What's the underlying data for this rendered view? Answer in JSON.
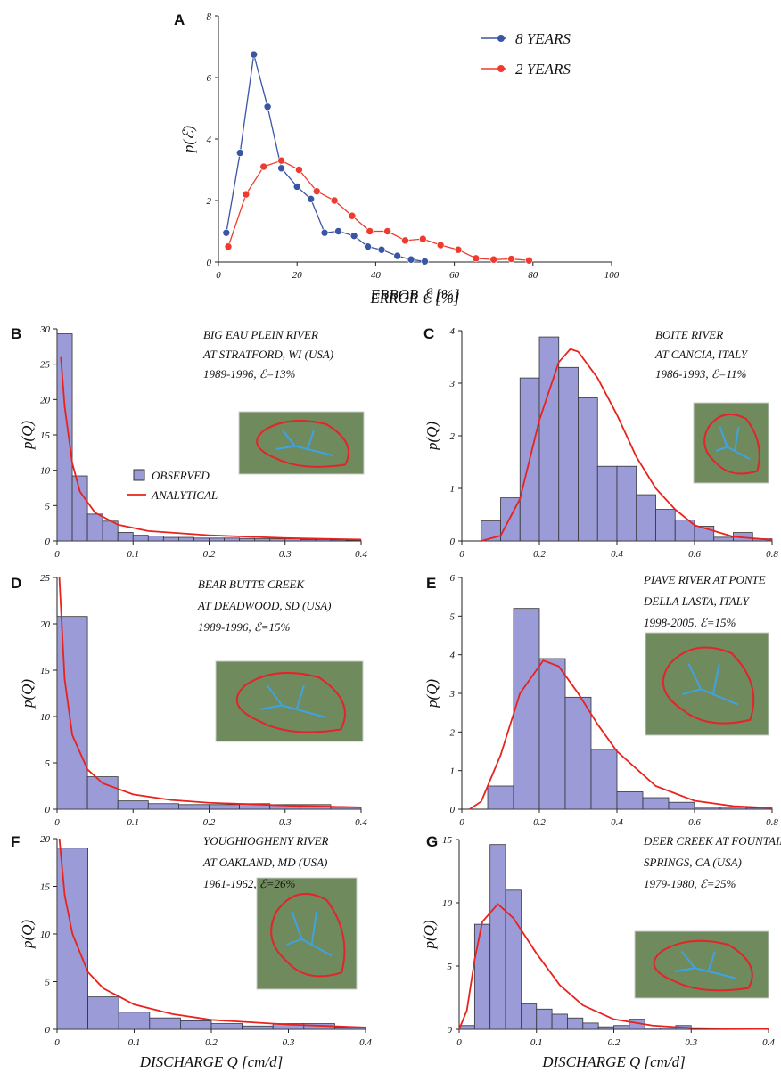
{
  "chart_data": [
    {
      "type": "line",
      "label": "A",
      "xlabel": "ERROR ℰ [%]",
      "ylabel": "p(ℰ)",
      "xlim": [
        0,
        100
      ],
      "xticks": [
        0,
        20,
        40,
        60,
        80,
        100
      ],
      "ylim": [
        0,
        8
      ],
      "yticks": [
        0,
        2,
        4,
        6,
        8
      ],
      "series": [
        {
          "name": "8 YEARS",
          "color": "#3a55a4",
          "x": [
            2,
            5.5,
            9,
            12.5,
            16,
            20,
            23.5,
            27,
            30.5,
            34.5,
            38,
            41.5,
            45.5,
            49,
            52.5
          ],
          "values": [
            0.95,
            3.55,
            6.75,
            5.05,
            3.05,
            2.45,
            2.05,
            0.95,
            1.0,
            0.85,
            0.5,
            0.4,
            0.2,
            0.08,
            0.02
          ]
        },
        {
          "name": "2 YEARS",
          "color": "#ee3b2e",
          "x": [
            2.5,
            7,
            11.5,
            16,
            20.5,
            25,
            29.5,
            34,
            38.5,
            43,
            47.5,
            52,
            56.5,
            61,
            65.5,
            70,
            74.5,
            79
          ],
          "values": [
            0.5,
            2.2,
            3.1,
            3.3,
            3.0,
            2.3,
            2.0,
            1.5,
            1.0,
            1.0,
            0.7,
            0.75,
            0.55,
            0.4,
            0.12,
            0.08,
            0.1,
            0.05
          ]
        }
      ]
    },
    {
      "type": "histogram",
      "label": "B",
      "ylabel": "p(Q)",
      "annotation": [
        "BIG EAU PLEIN RIVER",
        "AT STRATFORD, WI (USA)",
        "1989-1996, ℰ=13%"
      ],
      "xlim": [
        0,
        0.4
      ],
      "xticks": [
        0,
        0.1,
        0.2,
        0.3,
        0.4
      ],
      "ylim": [
        0,
        30
      ],
      "yticks": [
        0,
        5,
        10,
        15,
        20,
        25,
        30
      ],
      "name": "OBSERVED",
      "color": "#9b9bd8",
      "bins": [
        0,
        0.02,
        0.04,
        0.06,
        0.08,
        0.1,
        0.12,
        0.14,
        0.16,
        0.18,
        0.2,
        0.22,
        0.24,
        0.26,
        0.28,
        0.3,
        0.32,
        0.34,
        0.36,
        0.38,
        0.4
      ],
      "values": [
        29.3,
        9.2,
        3.8,
        2.8,
        1.2,
        0.8,
        0.7,
        0.5,
        0.5,
        0.4,
        0.4,
        0.4,
        0.35,
        0.3,
        0.3,
        0.3,
        0.2,
        0.2,
        0.15,
        0.1
      ],
      "curve": {
        "name": "ANALYTICAL",
        "color": "#e8221c",
        "x": [
          0.005,
          0.01,
          0.02,
          0.03,
          0.05,
          0.08,
          0.12,
          0.2,
          0.3,
          0.4
        ],
        "values": [
          26,
          19,
          11,
          7,
          4,
          2.3,
          1.4,
          0.8,
          0.4,
          0.2
        ]
      }
    },
    {
      "type": "histogram",
      "label": "C",
      "ylabel": "p(Q)",
      "annotation": [
        "BOITE RIVER",
        "AT CANCIA, ITALY",
        "1986-1993, ℰ=11%"
      ],
      "xlim": [
        0,
        0.8
      ],
      "xticks": [
        0,
        0.2,
        0.4,
        0.6,
        0.8
      ],
      "ylim": [
        0,
        4
      ],
      "yticks": [
        0,
        1,
        2,
        3,
        4
      ],
      "color": "#9b9bd8",
      "bins": [
        0.05,
        0.1,
        0.15,
        0.2,
        0.25,
        0.3,
        0.35,
        0.4,
        0.45,
        0.5,
        0.55,
        0.6,
        0.65,
        0.7,
        0.75,
        0.8
      ],
      "values": [
        0.38,
        0.82,
        3.1,
        3.88,
        3.3,
        2.72,
        1.42,
        1.42,
        0.88,
        0.6,
        0.4,
        0.28,
        0.07,
        0.16,
        0.04
      ],
      "curve": {
        "color": "#e8221c",
        "x": [
          0.05,
          0.1,
          0.15,
          0.2,
          0.25,
          0.28,
          0.3,
          0.35,
          0.4,
          0.45,
          0.5,
          0.55,
          0.6,
          0.7,
          0.8
        ],
        "values": [
          0,
          0.1,
          0.8,
          2.3,
          3.4,
          3.65,
          3.6,
          3.1,
          2.4,
          1.6,
          1.0,
          0.6,
          0.3,
          0.08,
          0.02
        ]
      }
    },
    {
      "type": "histogram",
      "label": "D",
      "ylabel": "p(Q)",
      "annotation": [
        "BEAR BUTTE CREEK",
        "AT DEADWOOD, SD (USA)",
        "1989-1996, ℰ=15%"
      ],
      "xlim": [
        0,
        0.4
      ],
      "xticks": [
        0,
        0.1,
        0.2,
        0.3,
        0.4
      ],
      "ylim": [
        0,
        25
      ],
      "yticks": [
        0,
        5,
        10,
        15,
        20,
        25
      ],
      "color": "#9b9bd8",
      "bins": [
        0,
        0.04,
        0.08,
        0.12,
        0.16,
        0.2,
        0.24,
        0.28,
        0.32,
        0.36,
        0.4
      ],
      "values": [
        20.8,
        3.5,
        0.9,
        0.6,
        0.5,
        0.5,
        0.6,
        0.5,
        0.5,
        0.2
      ],
      "curve": {
        "color": "#e8221c",
        "x": [
          0.003,
          0.01,
          0.02,
          0.04,
          0.06,
          0.1,
          0.15,
          0.2,
          0.3,
          0.4
        ],
        "values": [
          25,
          14,
          8,
          4.3,
          2.8,
          1.6,
          1.0,
          0.7,
          0.4,
          0.2
        ]
      }
    },
    {
      "type": "histogram",
      "label": "E",
      "ylabel": "p(Q)",
      "annotation": [
        "PIAVE RIVER AT PONTE",
        "DELLA LASTA, ITALY",
        "1998-2005, ℰ=15%"
      ],
      "xlim": [
        0,
        0.8
      ],
      "xticks": [
        0,
        0.2,
        0.4,
        0.6,
        0.8
      ],
      "ylim": [
        0,
        6
      ],
      "yticks": [
        0,
        1,
        2,
        3,
        4,
        5,
        6
      ],
      "color": "#9b9bd8",
      "bins": [
        0.0667,
        0.1333,
        0.2,
        0.2667,
        0.3333,
        0.4,
        0.4667,
        0.5333,
        0.6,
        0.6667,
        0.7333,
        0.8
      ],
      "values": [
        0.6,
        5.2,
        3.9,
        2.9,
        1.55,
        0.45,
        0.3,
        0.18,
        0.05,
        0.05,
        0.03
      ],
      "curve": {
        "color": "#e8221c",
        "x": [
          0.02,
          0.05,
          0.1,
          0.15,
          0.21,
          0.25,
          0.3,
          0.35,
          0.4,
          0.5,
          0.6,
          0.7,
          0.8
        ],
        "values": [
          0,
          0.2,
          1.4,
          3.0,
          3.85,
          3.7,
          3.0,
          2.2,
          1.5,
          0.6,
          0.22,
          0.08,
          0.03
        ]
      }
    },
    {
      "type": "histogram",
      "label": "F",
      "ylabel": "p(Q)",
      "xlabel": "DISCHARGE Q [cm/d]",
      "annotation": [
        "YOUGHIOGHENY RIVER",
        "AT OAKLAND, MD (USA)",
        "1961-1962, ℰ=26%"
      ],
      "xlim": [
        0,
        0.4
      ],
      "xticks": [
        0,
        0.1,
        0.2,
        0.3,
        0.4
      ],
      "ylim": [
        0,
        20
      ],
      "yticks": [
        0,
        5,
        10,
        15,
        20
      ],
      "color": "#9b9bd8",
      "bins": [
        0,
        0.04,
        0.08,
        0.12,
        0.16,
        0.2,
        0.24,
        0.28,
        0.32,
        0.36,
        0.4
      ],
      "values": [
        19,
        3.4,
        1.8,
        1.2,
        0.9,
        0.6,
        0.35,
        0.6,
        0.6,
        0.2
      ],
      "curve": {
        "color": "#e8221c",
        "x": [
          0.003,
          0.01,
          0.02,
          0.04,
          0.06,
          0.1,
          0.15,
          0.2,
          0.3,
          0.4
        ],
        "values": [
          20,
          14,
          10,
          6,
          4.3,
          2.6,
          1.6,
          1.0,
          0.5,
          0.2
        ]
      }
    },
    {
      "type": "histogram",
      "label": "G",
      "ylabel": "p(Q)",
      "xlabel": "DISCHARGE Q [cm/d]",
      "annotation": [
        "DEER CREEK AT FOUNTAIN",
        "SPRINGS, CA (USA)",
        "1979-1980, ℰ=25%"
      ],
      "xlim": [
        0,
        0.4
      ],
      "xticks": [
        0,
        0.1,
        0.2,
        0.3,
        0.4
      ],
      "ylim": [
        0,
        15
      ],
      "yticks": [
        0,
        5,
        10,
        15
      ],
      "color": "#9b9bd8",
      "bins": [
        0,
        0.02,
        0.04,
        0.06,
        0.08,
        0.1,
        0.12,
        0.14,
        0.16,
        0.18,
        0.2,
        0.22,
        0.24,
        0.26,
        0.28,
        0.3
      ],
      "values": [
        0.3,
        8.3,
        14.6,
        11.0,
        2.0,
        1.6,
        1.2,
        0.9,
        0.5,
        0.2,
        0.3,
        0.8,
        0.1,
        0.1,
        0.3
      ],
      "curve": {
        "color": "#e8221c",
        "x": [
          0,
          0.01,
          0.02,
          0.03,
          0.05,
          0.07,
          0.1,
          0.13,
          0.16,
          0.2,
          0.25,
          0.3,
          0.4
        ],
        "values": [
          0,
          1.5,
          5.5,
          8.5,
          9.9,
          8.8,
          6,
          3.5,
          1.9,
          0.8,
          0.3,
          0.1,
          0.02
        ]
      }
    }
  ]
}
